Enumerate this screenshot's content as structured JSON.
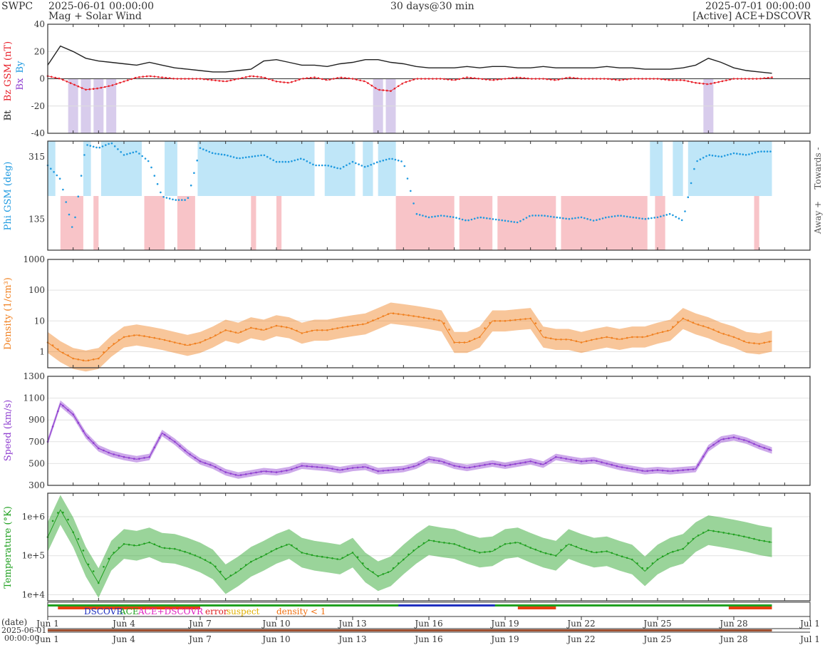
{
  "header": {
    "org": "SWPC",
    "start": "2025-06-01 00:00:00",
    "subtitle": "Mag + Solar Wind",
    "span": "30 days@30 min",
    "end": "2025-07-01 00:00:00",
    "source": "[Active] ACE+DSCOVR"
  },
  "colors": {
    "bt": "#222222",
    "bz": "#e8202a",
    "phi": "#1f9ae0",
    "density": "#f08020",
    "speed": "#9040d0",
    "temp": "#20a020",
    "bz_fill": "#d8ccec",
    "towards_fill": "#bfe6f8",
    "away_fill": "#f8c4c8"
  },
  "x_ticks": [
    "Jun 1",
    "Jun 4",
    "Jun 7",
    "Jun 10",
    "Jun 13",
    "Jun 16",
    "Jun 19",
    "Jun 22",
    "Jun 25",
    "Jun 28",
    "Jul 1"
  ],
  "legend": {
    "dscovr": "DSCOVR",
    "ace": "ACE",
    "ace_dscovr": "ACE+DSCOVR",
    "error": "error",
    "suspect": "suspect",
    "density_low": "density < 1"
  },
  "date_label": "(date)",
  "date_start": "2025-06-01",
  "time_start": "00:00:00",
  "chart_data": [
    {
      "type": "line",
      "ylabel": "Bt  Bz GSM (nT)",
      "series_labels": [
        "Bt",
        "Bz GSM (nT)",
        "Bx",
        "By"
      ],
      "yticks": [
        "40",
        "20",
        "0",
        "-20",
        "-40"
      ],
      "ylim": [
        -40,
        40
      ],
      "x_days": [
        0,
        0.5,
        1,
        1.5,
        2,
        2.5,
        3,
        3.5,
        4,
        4.5,
        5,
        5.5,
        6,
        6.5,
        7,
        7.5,
        8,
        8.5,
        9,
        9.5,
        10,
        10.5,
        11,
        11.5,
        12,
        12.5,
        13,
        13.5,
        14,
        14.5,
        15,
        15.5,
        16,
        16.5,
        17,
        17.5,
        18,
        18.5,
        19,
        19.5,
        20,
        20.5,
        21,
        21.5,
        22,
        22.5,
        23,
        23.5,
        24,
        24.5,
        25,
        25.5,
        26,
        26.5,
        27,
        27.5,
        28,
        28.5
      ],
      "series": [
        {
          "name": "Bt",
          "values": [
            10,
            24,
            20,
            15,
            13,
            12,
            11,
            10,
            12,
            10,
            8,
            7,
            6,
            5,
            5,
            6,
            7,
            13,
            14,
            12,
            10,
            10,
            9,
            11,
            12,
            14,
            14,
            12,
            11,
            9,
            8,
            8,
            8,
            9,
            8,
            9,
            9,
            8,
            8,
            9,
            8,
            8,
            8,
            8,
            9,
            8,
            8,
            7,
            7,
            7,
            8,
            10,
            15,
            12,
            8,
            6,
            5,
            4
          ]
        },
        {
          "name": "Bz",
          "values": [
            2,
            0,
            -4,
            -8,
            -7,
            -5,
            -2,
            1,
            2,
            1,
            0,
            0,
            0,
            -1,
            -2,
            0,
            2,
            1,
            -2,
            -3,
            0,
            1,
            -1,
            1,
            0,
            -2,
            -8,
            -9,
            -3,
            0,
            0,
            0,
            -1,
            1,
            0,
            -1,
            0,
            1,
            0,
            0,
            -1,
            1,
            0,
            0,
            0,
            -1,
            0,
            0,
            0,
            -1,
            -1,
            -3,
            -4,
            -2,
            0,
            0,
            0,
            1
          ]
        }
      ]
    },
    {
      "type": "scatter",
      "ylabel": "Phi GSM (deg)",
      "yticks": [
        "315",
        "135"
      ],
      "right_labels": [
        "Towards -",
        "Away +"
      ],
      "x_days": [
        0,
        0.5,
        1,
        1.5,
        2,
        2.5,
        3,
        3.5,
        4,
        4.5,
        5,
        5.5,
        6,
        6.5,
        7,
        7.5,
        8,
        8.5,
        9,
        9.5,
        10,
        10.5,
        11,
        11.5,
        12,
        12.5,
        13,
        13.5,
        14,
        14.5,
        15,
        15.5,
        16,
        16.5,
        17,
        17.5,
        18,
        18.5,
        19,
        19.5,
        20,
        20.5,
        21,
        21.5,
        22,
        22.5,
        23,
        23.5,
        24,
        24.5,
        25,
        25.5,
        26,
        26.5,
        27,
        27.5,
        28,
        28.5
      ],
      "values": [
        290,
        250,
        100,
        350,
        340,
        355,
        320,
        330,
        300,
        200,
        190,
        190,
        340,
        325,
        320,
        310,
        315,
        320,
        300,
        300,
        310,
        290,
        290,
        280,
        300,
        285,
        300,
        310,
        300,
        150,
        140,
        145,
        140,
        130,
        140,
        135,
        130,
        125,
        145,
        145,
        140,
        135,
        140,
        130,
        140,
        145,
        140,
        135,
        140,
        150,
        130,
        300,
        320,
        315,
        325,
        320,
        330,
        330
      ],
      "towards_days": [
        [
          0,
          0.3
        ],
        [
          1.4,
          1.7
        ],
        [
          2.1,
          3.7
        ],
        [
          4.6,
          5.1
        ],
        [
          5.9,
          10.5
        ],
        [
          10.9,
          12.1
        ],
        [
          12.4,
          12.8
        ],
        [
          13.0,
          13.7
        ],
        [
          23.7,
          24.2
        ],
        [
          24.6,
          25.0
        ],
        [
          25.2,
          28.5
        ]
      ],
      "away_days": [
        [
          0.5,
          1.4
        ],
        [
          1.8,
          2.0
        ],
        [
          3.8,
          4.6
        ],
        [
          5.1,
          5.8
        ],
        [
          8.0,
          8.2
        ],
        [
          9.0,
          9.2
        ],
        [
          13.7,
          16.0
        ],
        [
          16.2,
          17.5
        ],
        [
          17.7,
          20.0
        ],
        [
          20.2,
          23.6
        ],
        [
          23.9,
          24.3
        ],
        [
          27.8,
          28.0
        ]
      ]
    },
    {
      "type": "line",
      "ylabel": "Density (1/cm³)",
      "yticks": [
        "1000",
        "100",
        "10",
        "1"
      ],
      "log": true,
      "ylim": [
        0.3,
        1000
      ],
      "x_days": [
        0,
        0.5,
        1,
        1.5,
        2,
        2.5,
        3,
        3.5,
        4,
        4.5,
        5,
        5.5,
        6,
        6.5,
        7,
        7.5,
        8,
        8.5,
        9,
        9.5,
        10,
        10.5,
        11,
        11.5,
        12,
        12.5,
        13,
        13.5,
        14,
        14.5,
        15,
        15.5,
        16,
        16.5,
        17,
        17.5,
        18,
        18.5,
        19,
        19.5,
        20,
        20.5,
        21,
        21.5,
        22,
        22.5,
        23,
        23.5,
        24,
        24.5,
        25,
        25.5,
        26,
        26.5,
        27,
        27.5,
        28,
        28.5
      ],
      "values": [
        2,
        1,
        0.6,
        0.5,
        0.6,
        1.5,
        3,
        3.5,
        3,
        2.5,
        2,
        1.6,
        2,
        3,
        5,
        4,
        6,
        5,
        7,
        6,
        4,
        5,
        5,
        6,
        7,
        8,
        12,
        18,
        16,
        14,
        12,
        10,
        2,
        2,
        3,
        10,
        10,
        11,
        12,
        3,
        2.5,
        2.5,
        2,
        2.5,
        3,
        2.5,
        3,
        3,
        4,
        5,
        12,
        8,
        6,
        4,
        3,
        2,
        1.8,
        2.2
      ]
    },
    {
      "type": "line",
      "ylabel": "Speed (km/s)",
      "yticks": [
        "1300",
        "1100",
        "900",
        "700",
        "500",
        "300"
      ],
      "ylim": [
        300,
        1300
      ],
      "x_days": [
        0,
        0.5,
        1,
        1.5,
        2,
        2.5,
        3,
        3.5,
        4,
        4.5,
        5,
        5.5,
        6,
        6.5,
        7,
        7.5,
        8,
        8.5,
        9,
        9.5,
        10,
        10.5,
        11,
        11.5,
        12,
        12.5,
        13,
        13.5,
        14,
        14.5,
        15,
        15.5,
        16,
        16.5,
        17,
        17.5,
        18,
        18.5,
        19,
        19.5,
        20,
        20.5,
        21,
        21.5,
        22,
        22.5,
        23,
        23.5,
        24,
        24.5,
        25,
        25.5,
        26,
        26.5,
        27,
        27.5,
        28,
        28.5
      ],
      "values": [
        700,
        1050,
        950,
        760,
        640,
        590,
        560,
        540,
        560,
        780,
        700,
        600,
        520,
        480,
        420,
        390,
        410,
        430,
        420,
        440,
        480,
        470,
        460,
        440,
        460,
        470,
        430,
        440,
        450,
        480,
        540,
        520,
        480,
        460,
        480,
        500,
        480,
        500,
        520,
        490,
        560,
        540,
        520,
        530,
        500,
        470,
        450,
        430,
        440,
        430,
        440,
        450,
        640,
        720,
        740,
        710,
        660,
        620
      ]
    },
    {
      "type": "line",
      "ylabel": "Temperature (°K)",
      "yticks": [
        "1e+6",
        "1e+5",
        "1e+4"
      ],
      "log": true,
      "ylim": [
        7000,
        4000000
      ],
      "x_days": [
        0,
        0.5,
        1,
        1.5,
        2,
        2.5,
        3,
        3.5,
        4,
        4.5,
        5,
        5.5,
        6,
        6.5,
        7,
        7.5,
        8,
        8.5,
        9,
        9.5,
        10,
        10.5,
        11,
        11.5,
        12,
        12.5,
        13,
        13.5,
        14,
        14.5,
        15,
        15.5,
        16,
        16.5,
        17,
        17.5,
        18,
        18.5,
        19,
        19.5,
        20,
        20.5,
        21,
        21.5,
        22,
        22.5,
        23,
        23.5,
        24,
        24.5,
        25,
        25.5,
        26,
        26.5,
        27,
        27.5,
        28,
        28.5
      ],
      "values": [
        300000,
        1500000,
        400000,
        70000,
        20000,
        100000,
        200000,
        180000,
        220000,
        160000,
        150000,
        120000,
        90000,
        60000,
        25000,
        40000,
        70000,
        100000,
        150000,
        200000,
        120000,
        100000,
        90000,
        80000,
        120000,
        50000,
        30000,
        40000,
        80000,
        150000,
        250000,
        220000,
        200000,
        150000,
        120000,
        130000,
        200000,
        220000,
        160000,
        120000,
        100000,
        200000,
        150000,
        120000,
        130000,
        100000,
        80000,
        40000,
        80000,
        120000,
        150000,
        300000,
        450000,
        400000,
        350000,
        300000,
        250000,
        220000
      ]
    }
  ]
}
